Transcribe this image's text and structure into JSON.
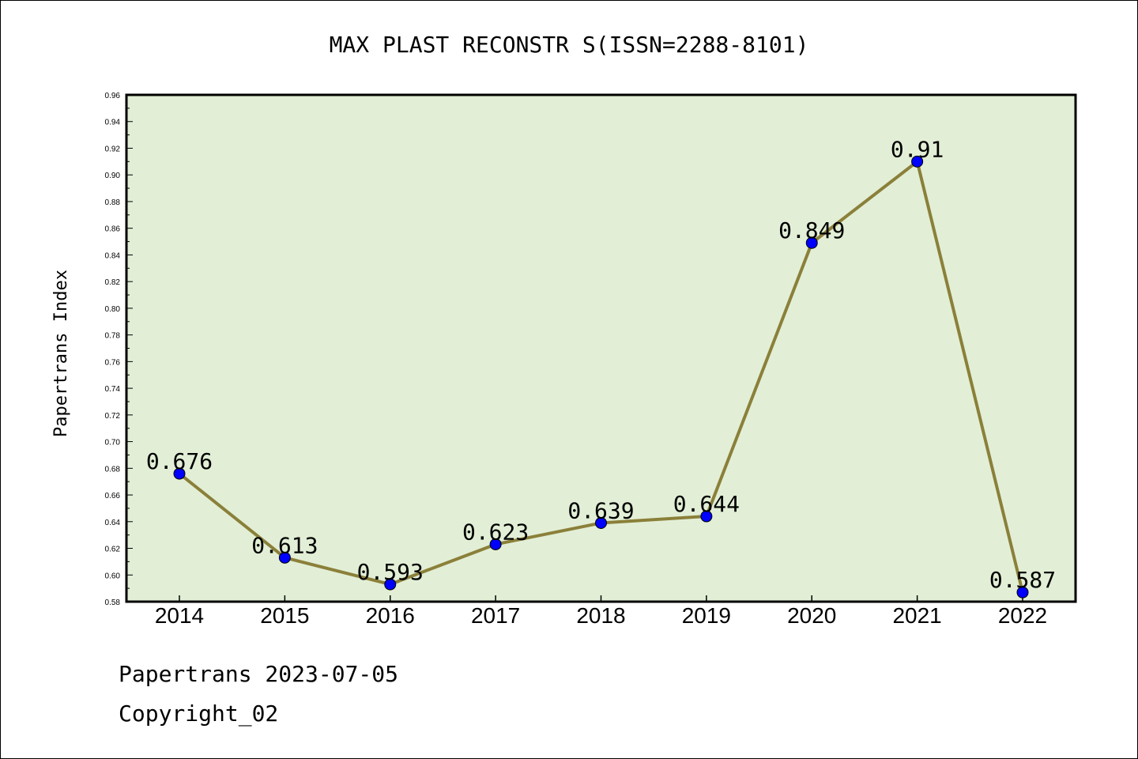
{
  "chart_data": {
    "type": "line",
    "title": "MAX PLAST RECONSTR S(ISSN=2288-8101)",
    "xlabel": "",
    "ylabel": "Papertrans Index",
    "categories": [
      "2014",
      "2015",
      "2016",
      "2017",
      "2018",
      "2019",
      "2020",
      "2021",
      "2022"
    ],
    "series": [
      {
        "values": [
          0.676,
          0.613,
          0.593,
          0.623,
          0.639,
          0.644,
          0.849,
          0.91,
          0.587
        ],
        "labels": [
          "0.676",
          "0.613",
          "0.593",
          "0.623",
          "0.639",
          "0.644",
          "0.849",
          "0.91",
          "0.587"
        ]
      }
    ],
    "ylim": [
      0.58,
      0.96
    ],
    "yticks": [
      "0.58",
      "0.60",
      "0.62",
      "0.64",
      "0.66",
      "0.68",
      "0.70",
      "0.72",
      "0.74",
      "0.76",
      "0.78",
      "0.80",
      "0.82",
      "0.84",
      "0.86",
      "0.88",
      "0.90",
      "0.92",
      "0.94",
      "0.96"
    ],
    "grid": false,
    "colors": {
      "plot_background": "#e2efd6",
      "line": "#8b803a",
      "marker": "#0000ff"
    }
  },
  "footer": {
    "date_line": "Papertrans 2023-07-05",
    "copyright_line": "Copyright_02"
  }
}
